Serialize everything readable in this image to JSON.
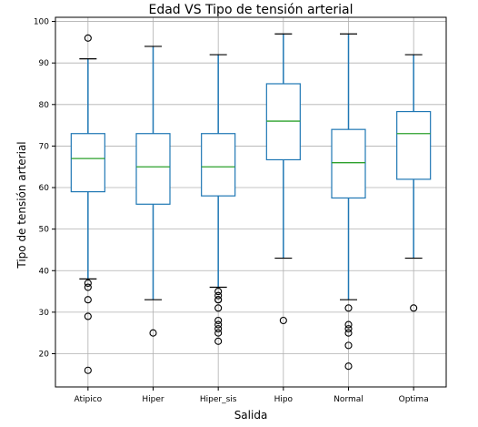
{
  "chart_data": {
    "type": "boxplot",
    "title": "Edad VS Tipo de tensión arterial",
    "xlabel": "Salida",
    "ylabel": "Tipo de tensión arterial",
    "ylim": [
      12,
      101
    ],
    "yticks": [
      20,
      30,
      40,
      50,
      60,
      70,
      80,
      90,
      100
    ],
    "grid": true,
    "colors": {
      "box": "#1f77b4",
      "median": "#2ca02c",
      "cap": "#000000",
      "grid": "#b0b0b0",
      "flier": "#000000"
    },
    "categories": [
      "Atipico",
      "Hiper",
      "Hiper_sis",
      "Hipo",
      "Normal",
      "Optima"
    ],
    "boxes": [
      {
        "whislo": 38,
        "q1": 59,
        "med": 67,
        "q3": 73,
        "whishi": 91,
        "fliers": [
          96,
          37,
          36,
          33,
          29,
          16
        ]
      },
      {
        "whislo": 33,
        "q1": 56,
        "med": 65,
        "q3": 73,
        "whishi": 94,
        "fliers": [
          25
        ]
      },
      {
        "whislo": 36,
        "q1": 58,
        "med": 65,
        "q3": 73,
        "whishi": 92,
        "fliers": [
          35,
          34,
          33,
          33,
          31,
          28,
          27,
          26,
          25,
          23
        ]
      },
      {
        "whislo": 43,
        "q1": 66.7,
        "med": 76,
        "q3": 85,
        "whishi": 97,
        "fliers": [
          28
        ]
      },
      {
        "whislo": 33,
        "q1": 57.5,
        "med": 66,
        "q3": 74,
        "whishi": 97,
        "fliers": [
          31,
          27,
          26,
          25,
          22,
          17
        ]
      },
      {
        "whislo": 43,
        "q1": 62,
        "med": 73,
        "q3": 78.3,
        "whishi": 92,
        "fliers": [
          31
        ]
      }
    ]
  }
}
